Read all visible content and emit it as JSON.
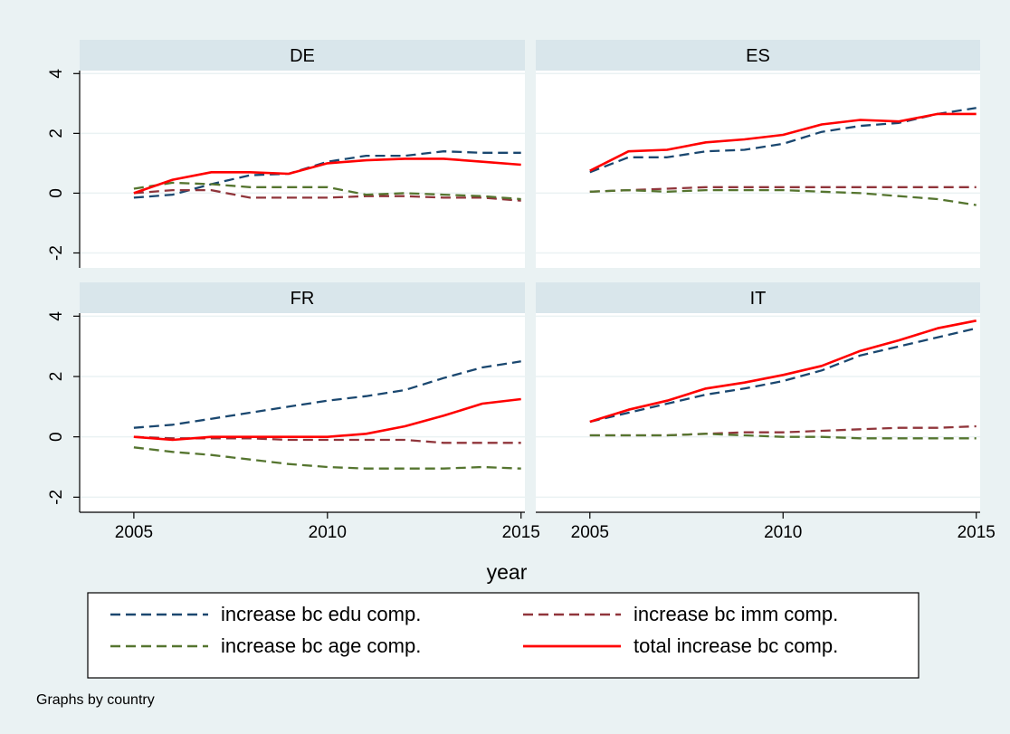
{
  "colors": {
    "background": "#eaf2f3",
    "plot_bg": "#ffffff",
    "strip": "#d9e6eb",
    "grid": "#eaf2f3"
  },
  "chart_data": {
    "type": "line",
    "layout": "2x2 panels by country",
    "x_axis_title": "year",
    "x_ticks": [
      2005,
      2010,
      2015
    ],
    "y_ticks": [
      -2,
      0,
      2,
      4
    ],
    "ylim": [
      -2.5,
      4.1
    ],
    "xlim": [
      2003.6,
      2015.1
    ],
    "grid": true,
    "legend_position": "bottom",
    "note": "Graphs by country",
    "series_meta": [
      {
        "key": "edu",
        "name": "increase bc edu comp.",
        "color": "#1a476f",
        "dash": "dashed"
      },
      {
        "key": "imm",
        "name": "increase bc imm comp.",
        "color": "#90353b",
        "dash": "dashed"
      },
      {
        "key": "age",
        "name": "increase bc age comp.",
        "color": "#55752f",
        "dash": "dashed"
      },
      {
        "key": "total",
        "name": "total increase bc comp.",
        "color": "#ff0000",
        "dash": "solid"
      }
    ],
    "x": [
      2005,
      2006,
      2007,
      2008,
      2009,
      2010,
      2011,
      2012,
      2013,
      2014,
      2015
    ],
    "panels": [
      {
        "title": "DE",
        "series": {
          "edu": [
            -0.15,
            -0.05,
            0.3,
            0.6,
            0.65,
            1.05,
            1.25,
            1.25,
            1.4,
            1.35,
            1.35
          ],
          "imm": [
            0.0,
            0.1,
            0.1,
            -0.15,
            -0.15,
            -0.15,
            -0.1,
            -0.1,
            -0.15,
            -0.15,
            -0.25
          ],
          "age": [
            0.15,
            0.35,
            0.3,
            0.2,
            0.2,
            0.2,
            -0.05,
            0.0,
            -0.05,
            -0.1,
            -0.2
          ],
          "total": [
            0.0,
            0.45,
            0.7,
            0.7,
            0.65,
            1.0,
            1.1,
            1.15,
            1.15,
            1.05,
            0.95
          ]
        }
      },
      {
        "title": "ES",
        "series": {
          "edu": [
            0.7,
            1.2,
            1.2,
            1.4,
            1.45,
            1.65,
            2.05,
            2.25,
            2.35,
            2.65,
            2.85
          ],
          "imm": [
            0.05,
            0.1,
            0.15,
            0.2,
            0.2,
            0.2,
            0.2,
            0.2,
            0.2,
            0.2,
            0.2
          ],
          "age": [
            0.05,
            0.1,
            0.05,
            0.1,
            0.1,
            0.1,
            0.05,
            0.0,
            -0.1,
            -0.2,
            -0.4
          ],
          "total": [
            0.75,
            1.4,
            1.45,
            1.7,
            1.8,
            1.95,
            2.3,
            2.45,
            2.4,
            2.65,
            2.65
          ]
        }
      },
      {
        "title": "FR",
        "series": {
          "edu": [
            0.3,
            0.4,
            0.6,
            0.8,
            1.0,
            1.2,
            1.35,
            1.55,
            1.95,
            2.3,
            2.5
          ],
          "imm": [
            0.0,
            -0.05,
            -0.05,
            -0.05,
            -0.1,
            -0.1,
            -0.1,
            -0.1,
            -0.2,
            -0.2,
            -0.2
          ],
          "age": [
            -0.35,
            -0.5,
            -0.6,
            -0.75,
            -0.9,
            -1.0,
            -1.05,
            -1.05,
            -1.05,
            -1.0,
            -1.05
          ],
          "total": [
            0.0,
            -0.1,
            0.0,
            0.0,
            0.0,
            0.0,
            0.1,
            0.35,
            0.7,
            1.1,
            1.25
          ]
        }
      },
      {
        "title": "IT",
        "series": {
          "edu": [
            0.5,
            0.8,
            1.1,
            1.4,
            1.6,
            1.85,
            2.2,
            2.7,
            3.0,
            3.3,
            3.6
          ],
          "imm": [
            0.05,
            0.05,
            0.05,
            0.1,
            0.15,
            0.15,
            0.2,
            0.25,
            0.3,
            0.3,
            0.35
          ],
          "age": [
            0.05,
            0.05,
            0.05,
            0.1,
            0.05,
            0.0,
            0.0,
            -0.05,
            -0.05,
            -0.05,
            -0.05
          ],
          "total": [
            0.5,
            0.9,
            1.2,
            1.6,
            1.8,
            2.05,
            2.35,
            2.85,
            3.2,
            3.6,
            3.85
          ]
        }
      }
    ]
  }
}
